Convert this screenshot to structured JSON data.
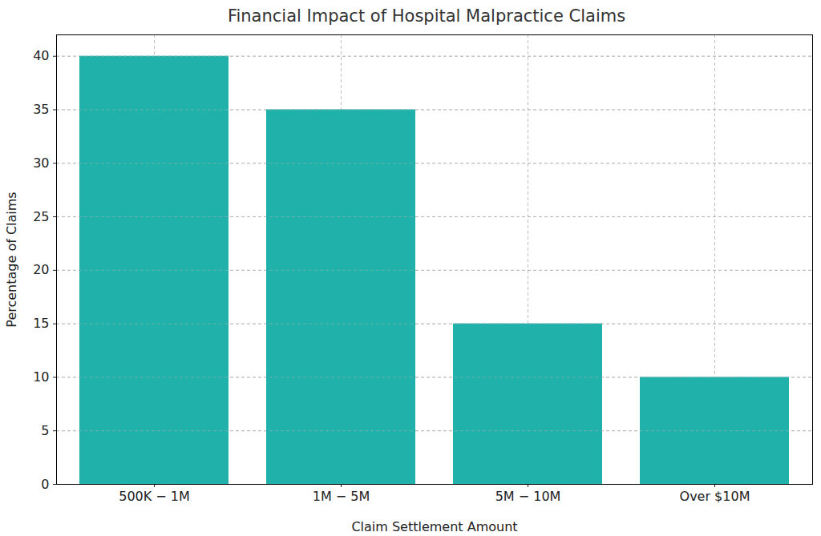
{
  "chart_data": {
    "type": "bar",
    "title": "Financial Impact of Hospital Malpractice Claims",
    "x_label": "Claim Settlement Amount",
    "y_label": "Percentage of Claims",
    "categories": [
      "500K − 1M",
      "1M − 5M",
      "5M − 10M",
      "Over $10M"
    ],
    "values": [
      40,
      35,
      15,
      10
    ],
    "color": "#20b2aa",
    "ylim": [
      0,
      42
    ],
    "yticks": [
      0,
      5,
      10,
      15,
      20,
      25,
      30,
      35,
      40
    ],
    "grid": true
  }
}
